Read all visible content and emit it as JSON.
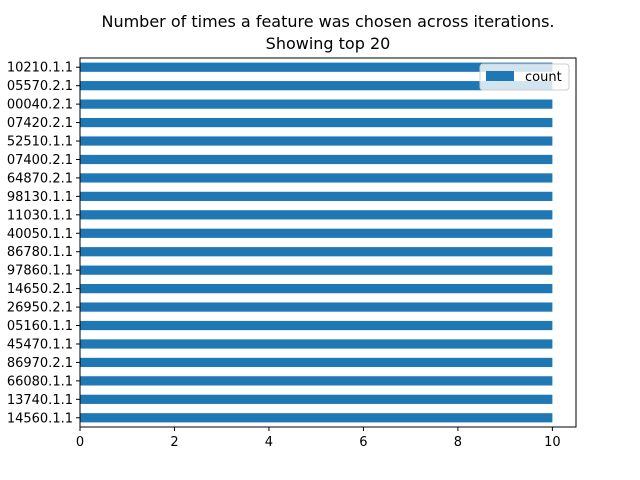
{
  "chart_data": {
    "type": "bar",
    "orientation": "horizontal",
    "title": "Number of times a feature was chosen across iterations.",
    "subtitle": "Showing top 20",
    "xlabel": "",
    "ylabel": "",
    "xlim": [
      0,
      10.5
    ],
    "xticks": [
      0,
      2,
      4,
      6,
      8,
      10
    ],
    "grid": false,
    "legend_position": "top-right",
    "categories": [
      "10210.1.1",
      "05570.2.1",
      "00040.2.1",
      "07420.2.1",
      "52510.1.1",
      "07400.2.1",
      "64870.2.1",
      "98130.1.1",
      "11030.1.1",
      "40050.1.1",
      "86780.1.1",
      "97860.1.1",
      "14650.2.1",
      "26950.2.1",
      "05160.1.1",
      "45470.1.1",
      "86970.2.1",
      "66080.1.1",
      "13740.1.1",
      "14560.1.1"
    ],
    "series": [
      {
        "name": "count",
        "color": "#1f77b4",
        "values": [
          10,
          10,
          10,
          10,
          10,
          10,
          10,
          10,
          10,
          10,
          10,
          10,
          10,
          10,
          10,
          10,
          10,
          10,
          10,
          10
        ]
      }
    ]
  }
}
